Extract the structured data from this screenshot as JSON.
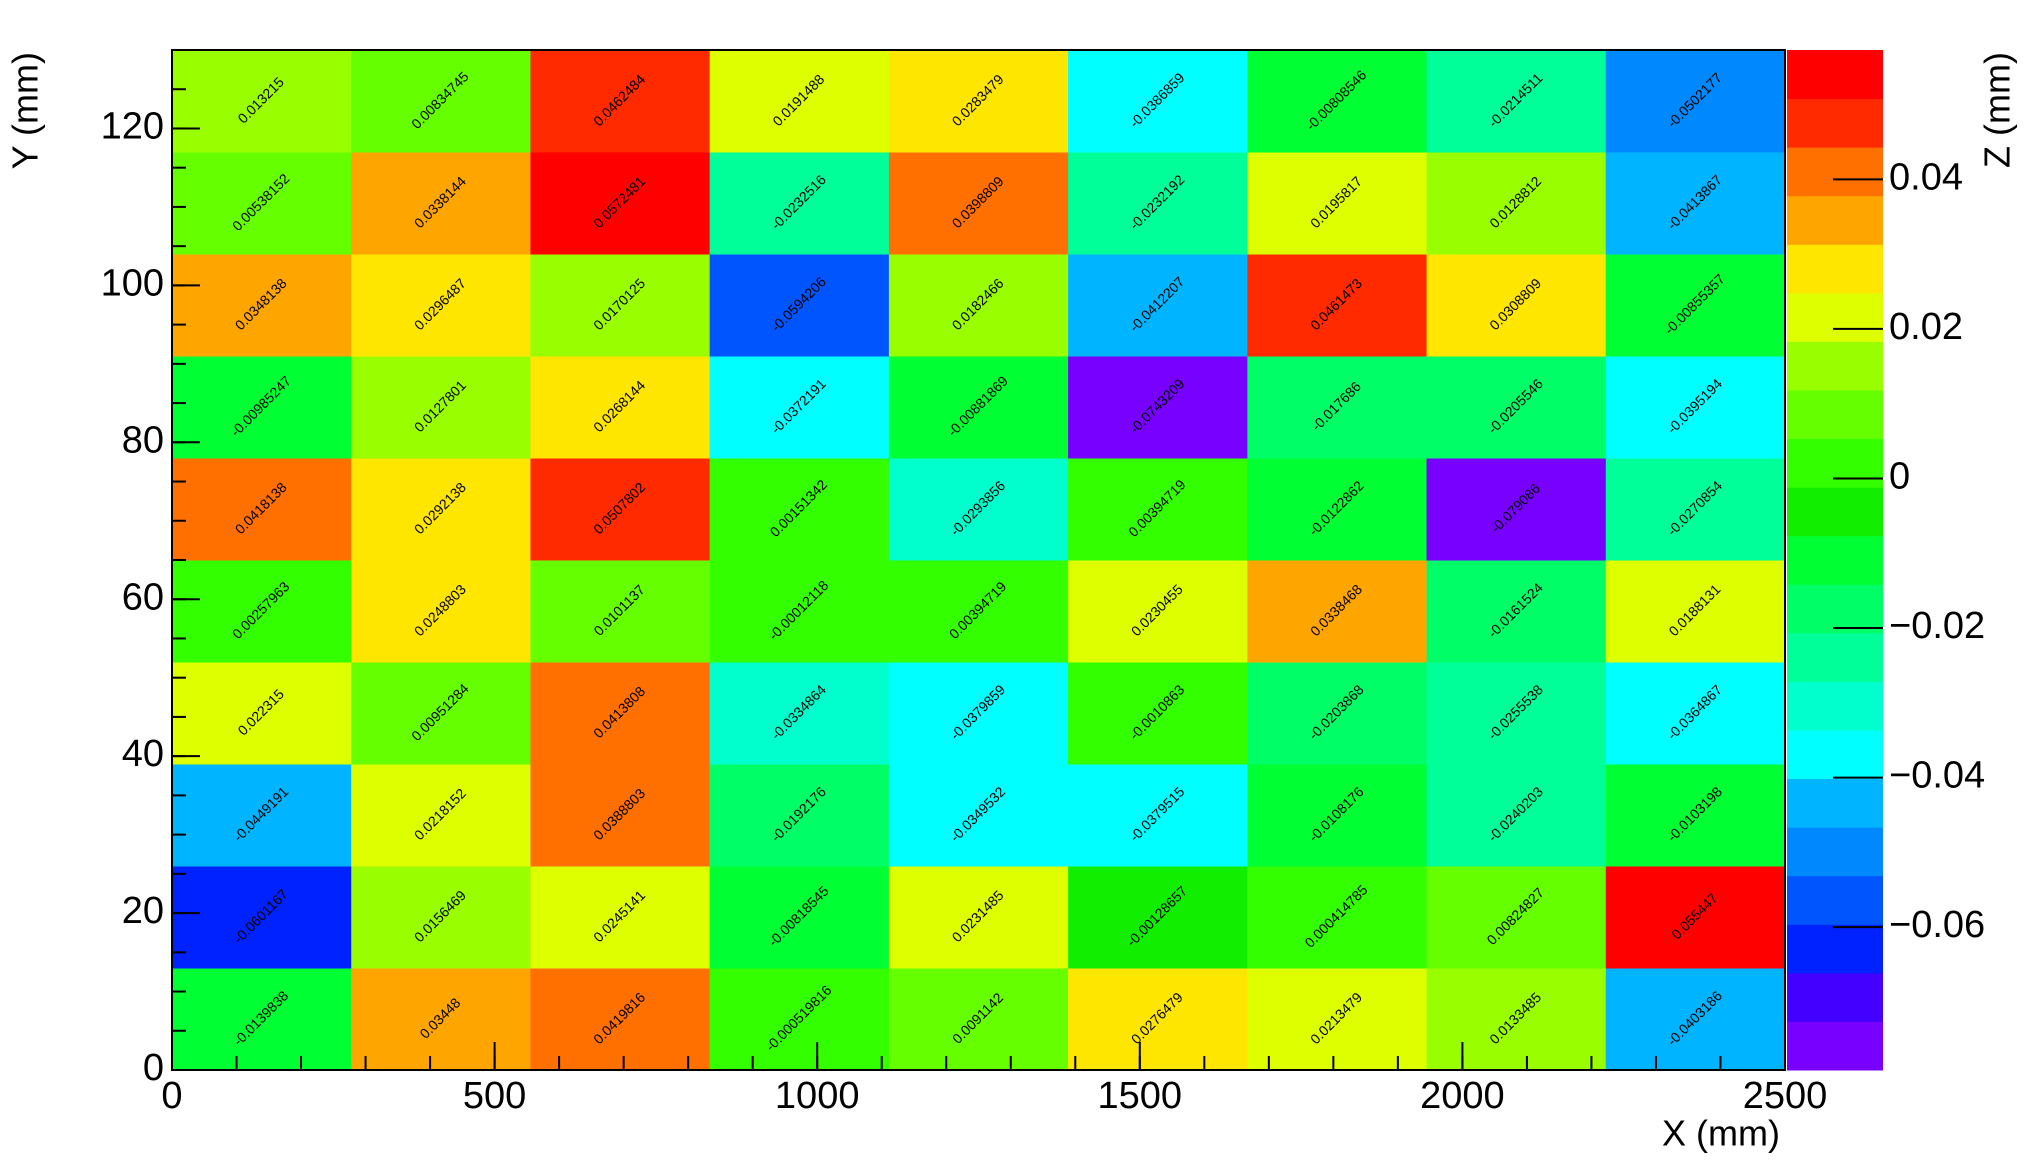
{
  "chart_data": {
    "type": "heatmap",
    "xlabel": "X (mm)",
    "ylabel": "Y (mm)",
    "zlabel": "Z (mm)",
    "xlim": [
      0,
      2500
    ],
    "ylim": [
      0,
      130
    ],
    "zlim": [
      -0.0791,
      0.0573
    ],
    "xticks": [
      0,
      500,
      1000,
      1500,
      2000,
      2500
    ],
    "yticks": [
      0,
      20,
      40,
      60,
      80,
      100,
      120
    ],
    "zticks": [
      {
        "value": -0.06,
        "label": "−0.06"
      },
      {
        "value": -0.04,
        "label": "−0.04"
      },
      {
        "value": -0.02,
        "label": "−0.02"
      },
      0,
      0.02,
      0.04
    ],
    "palette": [
      "#7700ff",
      "#4400ff",
      "#0022ff",
      "#0055ff",
      "#0088ff",
      "#00b4ff",
      "#00ffff",
      "#00ffcc",
      "#00ff99",
      "#00ff66",
      "#00ff33",
      "#11ee00",
      "#33ff00",
      "#66ff00",
      "#99ff00",
      "#ddff00",
      "#ffe600",
      "#ffa500",
      "#ff7000",
      "#ff2a00",
      "#ff0000"
    ],
    "z": [
      [
        -0.0139838,
        0.03448,
        0.0419816,
        -0.000519816,
        0.0091142,
        0.0276479,
        0.0213479,
        0.0133485,
        -0.0403186
      ],
      [
        -0.0601167,
        0.0156469,
        0.0245141,
        -0.00818545,
        0.0231485,
        -0.00128657,
        0.000414785,
        0.00824827,
        0.055447
      ],
      [
        -0.0449191,
        0.0218152,
        0.0388803,
        -0.0192176,
        -0.0349532,
        -0.0379515,
        -0.0108176,
        -0.0240203,
        -0.0103198
      ],
      [
        0.022315,
        0.00951284,
        0.0413808,
        -0.0334864,
        -0.0379859,
        -0.0010863,
        -0.0203868,
        -0.0255538,
        -0.0364867
      ],
      [
        0.00257963,
        0.0248803,
        0.0101137,
        -0.00012118,
        0.00394719,
        0.0230455,
        0.0338468,
        -0.0161524,
        0.0188131
      ],
      [
        0.0418138,
        0.0292138,
        0.0507802,
        0.00151342,
        -0.0293856,
        0.00394719,
        -0.0122862,
        -0.079086,
        -0.0270854
      ],
      [
        -0.00985247,
        0.0127801,
        0.0268144,
        -0.0372191,
        -0.00881869,
        -0.0743209,
        -0.017686,
        -0.0205546,
        -0.0395194
      ],
      [
        0.0348138,
        0.0296487,
        0.0170125,
        -0.0594206,
        0.0182466,
        -0.0412207,
        0.0461473,
        0.0308809,
        -0.00855357
      ],
      [
        0.00538152,
        0.0338144,
        0.0572481,
        -0.0232516,
        0.0398809,
        -0.0232192,
        0.0195817,
        0.0128812,
        -0.0413867
      ],
      [
        0.013215,
        0.00834745,
        0.0462484,
        0.0191488,
        0.0283479,
        -0.0386859,
        -0.00808546,
        -0.0214511,
        -0.0502177
      ]
    ]
  }
}
